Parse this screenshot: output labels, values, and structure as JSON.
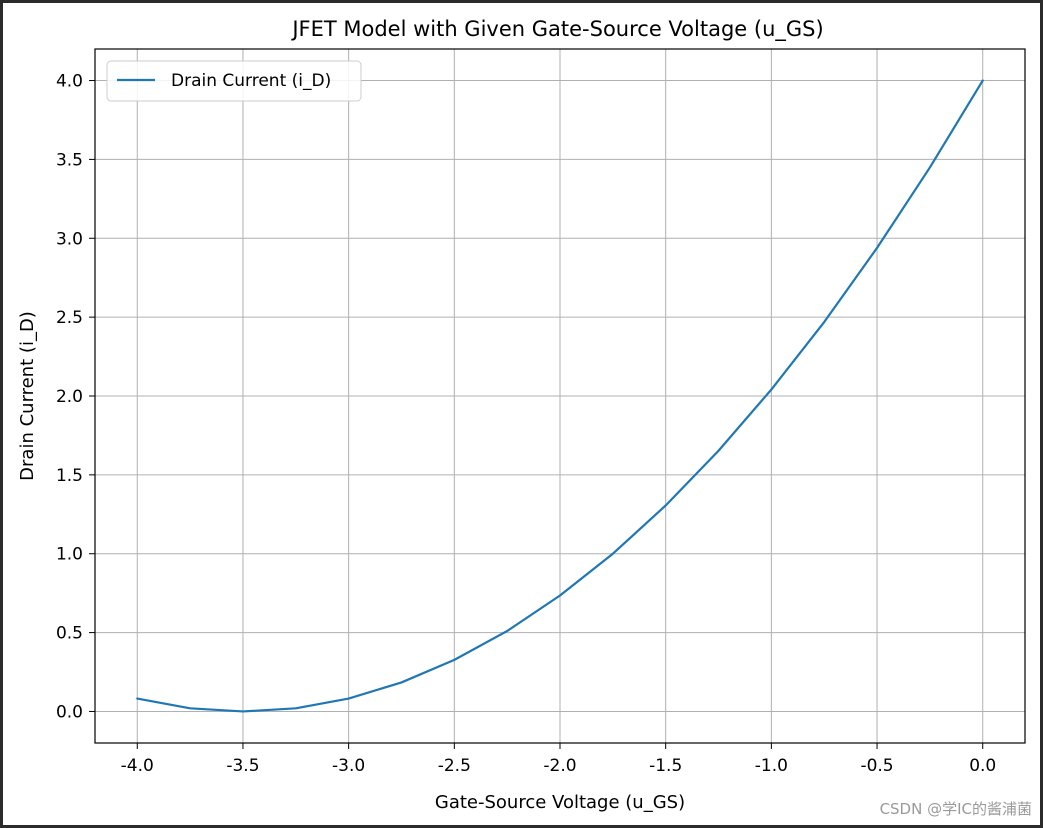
{
  "chart_data": {
    "type": "line",
    "title": "JFET Model with Given Gate-Source Voltage (u_GS)",
    "xlabel": "Gate-Source Voltage (u_GS)",
    "ylabel": "Drain Current (i_D)",
    "xlim": [
      -4.2,
      0.2
    ],
    "ylim": [
      -0.2,
      4.2
    ],
    "xticks": [
      "-4.0",
      "-3.5",
      "-3.0",
      "-2.5",
      "-2.0",
      "-1.5",
      "-1.0",
      "-0.5",
      "0.0"
    ],
    "yticks": [
      "0.0",
      "0.5",
      "1.0",
      "1.5",
      "2.0",
      "2.5",
      "3.0",
      "3.5",
      "4.0"
    ],
    "grid": true,
    "legend_position": "top-left",
    "series": [
      {
        "name": "Drain Current (i_D)",
        "color": "#1f77b4",
        "x": [
          -4.0,
          -3.75,
          -3.5,
          -3.25,
          -3.0,
          -2.75,
          -2.5,
          -2.25,
          -2.0,
          -1.75,
          -1.5,
          -1.25,
          -1.0,
          -0.75,
          -0.5,
          -0.25,
          0.0
        ],
        "y": [
          0.082,
          0.02,
          0.0,
          0.02,
          0.082,
          0.184,
          0.327,
          0.51,
          0.735,
          1.0,
          1.306,
          1.653,
          2.041,
          2.469,
          2.939,
          3.449,
          4.0
        ]
      }
    ]
  },
  "watermark": "CSDN @学IC的酱浦菌"
}
